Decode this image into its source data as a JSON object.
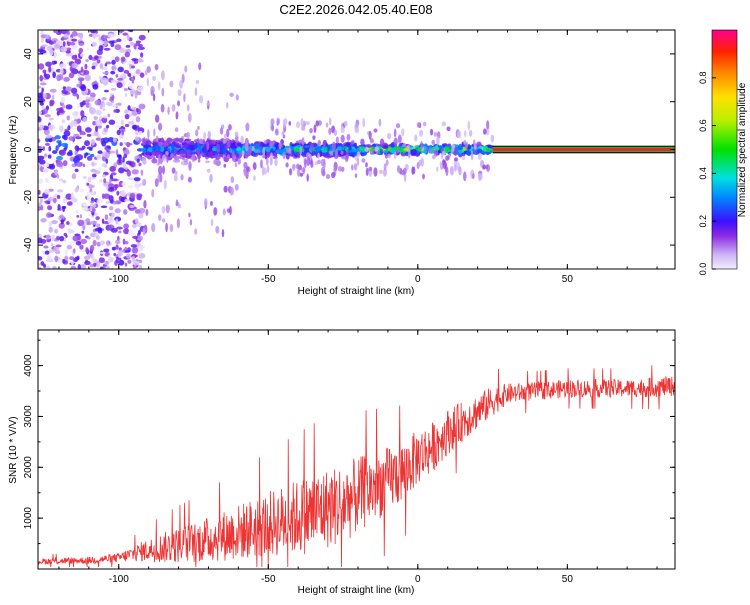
{
  "page_title": "C2E2.2026.042.05.40.E08",
  "chart_data": [
    {
      "type": "heatmap",
      "title": "C2E2.2026.042.05.40.E08",
      "xlabel": "Height of straight line (km)",
      "ylabel": "Frequency (Hz)",
      "xlim": [
        -127,
        86
      ],
      "ylim": [
        -50,
        50
      ],
      "xticks": [
        -100,
        -50,
        0,
        50
      ],
      "xtick_labels": [
        "-100",
        "-50",
        "0",
        "50"
      ],
      "yticks": [
        -40,
        -20,
        0,
        20,
        40
      ],
      "ytick_labels": [
        "-40",
        "-20",
        "0",
        "20",
        "40"
      ],
      "colorbar": {
        "label": "Normalized spectral amplitude",
        "range": [
          0,
          1
        ],
        "ticks": [
          0.0,
          0.2,
          0.4,
          0.6,
          0.8
        ],
        "tick_labels": [
          "0.0",
          "0.2",
          "0.4",
          "0.6",
          "0.8"
        ]
      },
      "segments": [
        {
          "x": [
            -127,
            -92
          ],
          "freq_spread_hz": 50,
          "max_amplitude": 0.2,
          "description": "broadband noise"
        },
        {
          "x": [
            -92,
            -60
          ],
          "freq_spread_hz": 8,
          "max_amplitude": 0.4
        },
        {
          "x": [
            -60,
            -20
          ],
          "freq_spread_hz": 5,
          "max_amplitude": 0.55
        },
        {
          "x": [
            -20,
            25
          ],
          "freq_spread_hz": 3,
          "max_amplitude": 0.75
        },
        {
          "x": [
            25,
            86
          ],
          "freq_spread_hz": 1,
          "max_amplitude": 0.95,
          "description": "stable carrier at 0 Hz"
        }
      ]
    },
    {
      "type": "line",
      "xlabel": "Height of straight line (km)",
      "ylabel": "SNR (10 * V/V)",
      "xlim": [
        -127,
        86
      ],
      "ylim": [
        0,
        4700
      ],
      "xticks": [
        -100,
        -50,
        0,
        50
      ],
      "xtick_labels": [
        "-100",
        "-50",
        "0",
        "50"
      ],
      "yticks": [
        1000,
        2000,
        3000,
        4000
      ],
      "ytick_labels": [
        "1000",
        "2000",
        "3000",
        "4000"
      ],
      "series": [
        {
          "name": "SNR",
          "color": "#ee3333",
          "x": [
            -127,
            -110,
            -100,
            -92,
            -85,
            -75,
            -65,
            -55,
            -45,
            -35,
            -25,
            -15,
            -5,
            0,
            5,
            10,
            15,
            20,
            25,
            30,
            40,
            50,
            60,
            70,
            80,
            86
          ],
          "y": [
            150,
            170,
            220,
            350,
            420,
            520,
            650,
            800,
            950,
            1100,
            1300,
            1600,
            1900,
            2200,
            2400,
            2700,
            2900,
            3100,
            3300,
            3450,
            3500,
            3550,
            3550,
            3550,
            3580,
            3600
          ],
          "noise": [
            60,
            70,
            90,
            200,
            300,
            400,
            500,
            600,
            700,
            800,
            800,
            700,
            600,
            550,
            500,
            450,
            400,
            350,
            300,
            200,
            180,
            180,
            180,
            180,
            200,
            200
          ]
        }
      ]
    }
  ]
}
